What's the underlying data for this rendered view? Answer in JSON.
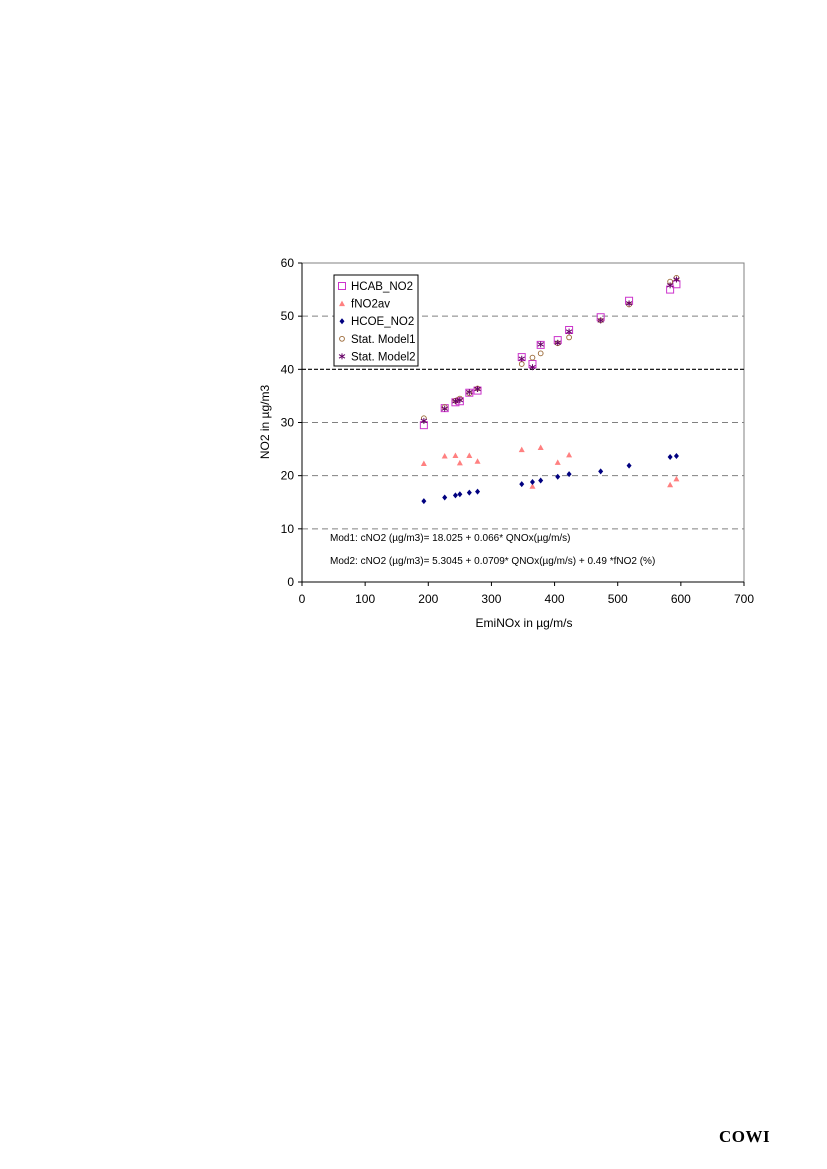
{
  "chart_data": {
    "type": "scatter",
    "xlabel": "EmiNOx in µg/m/s",
    "ylabel": "NO2 in µg/m3",
    "xlim": [
      0,
      700
    ],
    "ylim": [
      0,
      60
    ],
    "xticks": [
      0,
      100,
      200,
      300,
      400,
      500,
      600,
      700
    ],
    "yticks": [
      0,
      10,
      20,
      30,
      40,
      50,
      60
    ],
    "grid": "horizontal dashed",
    "highlight_line": 40,
    "legend_position": "top-left",
    "series": [
      {
        "name": "HCAB_NO2",
        "marker": "square-open",
        "color": "#cc33cc",
        "x": [
          193,
          226,
          243,
          250,
          265,
          278,
          348,
          365,
          378,
          405,
          423,
          473,
          518,
          583,
          593
        ],
        "y": [
          29.5,
          32.7,
          33.8,
          34.0,
          35.6,
          36.0,
          42.3,
          41.0,
          44.6,
          45.5,
          47.4,
          49.8,
          52.9,
          55.0,
          56.0
        ]
      },
      {
        "name": "fNO2av",
        "marker": "triangle",
        "color": "#ff8080",
        "x": [
          193,
          226,
          243,
          250,
          265,
          278,
          348,
          365,
          378,
          405,
          423,
          583,
          593
        ],
        "y": [
          22.3,
          23.7,
          23.8,
          22.4,
          23.8,
          22.7,
          24.9,
          18.0,
          25.3,
          22.5,
          23.9,
          18.3,
          19.4
        ]
      },
      {
        "name": "HCOE_NO2",
        "marker": "diamond",
        "color": "#000080",
        "x": [
          193,
          226,
          243,
          250,
          265,
          278,
          348,
          365,
          378,
          405,
          423,
          473,
          518,
          583,
          593
        ],
        "y": [
          15.2,
          15.9,
          16.3,
          16.5,
          16.8,
          17.0,
          18.4,
          18.8,
          19.1,
          19.8,
          20.3,
          20.8,
          21.9,
          23.5,
          23.7
        ]
      },
      {
        "name": "Stat. Model1",
        "marker": "circle-open",
        "color": "#996633",
        "x": [
          193,
          226,
          243,
          250,
          265,
          278,
          348,
          365,
          378,
          405,
          423,
          473,
          518,
          583,
          593
        ],
        "y": [
          30.8,
          32.9,
          34.1,
          34.5,
          35.5,
          36.4,
          41.0,
          42.2,
          43.0,
          44.9,
          46.0,
          49.2,
          52.2,
          56.5,
          57.2
        ]
      },
      {
        "name": "Stat. Model2",
        "marker": "star",
        "color": "#660066",
        "x": [
          193,
          226,
          243,
          250,
          265,
          278,
          348,
          365,
          378,
          405,
          423,
          473,
          518,
          583,
          593
        ],
        "y": [
          30.3,
          32.6,
          34.0,
          34.2,
          35.7,
          36.3,
          42.0,
          40.4,
          44.7,
          45.0,
          47.1,
          49.2,
          52.4,
          55.8,
          56.9
        ]
      }
    ],
    "annotations": [
      "Mod1: cNO2 (µg/m3)= 18.025 + 0.066* QNOx(µg/m/s)",
      "Mod2: cNO2 (µg/m3)= 5.3045 + 0.0709* QNOx(µg/m/s) + 0.49 *fNO2 (%)"
    ]
  },
  "footer": {
    "brand": "COWI"
  }
}
